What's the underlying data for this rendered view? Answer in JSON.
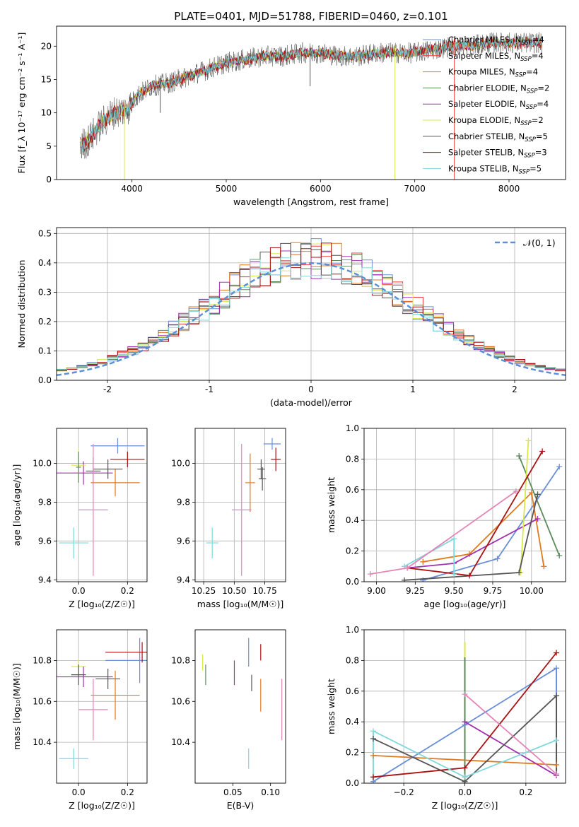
{
  "figure_title": "PLATE=0401, MJD=51788, FIBERID=0460, z=0.101",
  "colors": {
    "chabrier_miles": "#6a8fd8",
    "salpeter_miles": "#ee3b3b",
    "kroupa_miles": "#e07a1f",
    "chabrier_elodie": "#5a8a5a",
    "salpeter_elodie": "#a030b0",
    "kroupa_elodie": "#d8e84a",
    "chabrier_stelib": "#555555",
    "salpeter_stelib": "#aa1111",
    "kroupa_stelib": "#7fd8dc",
    "pink": "#e485b8",
    "normal_curve": "#5b8fd6"
  },
  "chart_data": [
    {
      "id": "spectrum",
      "type": "line",
      "xlabel": "wavelength [Angstrom, rest frame]",
      "ylabel": "Flux [f_λ 10⁻¹⁷ erg cm⁻² s⁻¹ A⁻¹]",
      "xlim": [
        3200,
        8600
      ],
      "ylim": [
        0,
        23
      ],
      "xticks": [
        4000,
        5000,
        6000,
        7000,
        8000
      ],
      "yticks": [
        0,
        5,
        10,
        15,
        20
      ],
      "grid": false,
      "legend": "right",
      "series": [
        {
          "name": "Chabrier MILES, N_SSP=4",
          "color": "#6a8fd8"
        },
        {
          "name": "Salpeter MILES, N_SSP=4",
          "color": "#ee3b3b"
        },
        {
          "name": "Kroupa MILES, N_SSP=4",
          "color": "#e07a1f"
        },
        {
          "name": "Chabrier ELODIE, N_SSP=2",
          "color": "#5a8a5a"
        },
        {
          "name": "Salpeter ELODIE, N_SSP=4",
          "color": "#a030b0"
        },
        {
          "name": "Kroupa ELODIE, N_SSP=2",
          "color": "#d8e84a"
        },
        {
          "name": "Chabrier STELIB, N_SSP=5",
          "color": "#555555"
        },
        {
          "name": "Salpeter STELIB, N_SSP=3",
          "color": "#aa1111"
        },
        {
          "name": "Kroupa STELIB, N_SSP=5",
          "color": "#7fd8dc"
        }
      ],
      "legend_labels": [
        {
          "main": "Chabrier MILES, N",
          "sub": "SSP",
          "tail": "=4"
        },
        {
          "main": "Salpeter MILES, N",
          "sub": "SSP",
          "tail": "=4"
        },
        {
          "main": "Kroupa MILES, N",
          "sub": "SSP",
          "tail": "=4"
        },
        {
          "main": "Chabrier ELODIE, N",
          "sub": "SSP",
          "tail": "=2"
        },
        {
          "main": "Salpeter ELODIE, N",
          "sub": "SSP",
          "tail": "=4"
        },
        {
          "main": "Kroupa ELODIE, N",
          "sub": "SSP",
          "tail": "=2"
        },
        {
          "main": "Chabrier STELIB, N",
          "sub": "SSP",
          "tail": "=5"
        },
        {
          "main": "Salpeter STELIB, N",
          "sub": "SSP",
          "tail": "=3"
        },
        {
          "main": "Kroupa STELIB, N",
          "sub": "SSP",
          "tail": "=5"
        }
      ],
      "continuum": [
        [
          3450,
          5
        ],
        [
          3550,
          6
        ],
        [
          3650,
          8
        ],
        [
          3800,
          10
        ],
        [
          3950,
          10.5
        ],
        [
          4050,
          12.5
        ],
        [
          4200,
          14
        ],
        [
          4400,
          14.5
        ],
        [
          4600,
          15.5
        ],
        [
          4800,
          16.5
        ],
        [
          5000,
          17.5
        ],
        [
          5200,
          18
        ],
        [
          5400,
          18.5
        ],
        [
          5600,
          18.5
        ],
        [
          5800,
          19
        ],
        [
          6000,
          19
        ],
        [
          6200,
          18.5
        ],
        [
          6400,
          18.5
        ],
        [
          6600,
          19
        ],
        [
          6800,
          19
        ],
        [
          7000,
          19
        ],
        [
          7200,
          19.5
        ],
        [
          7400,
          20
        ],
        [
          7600,
          20
        ],
        [
          7800,
          20.5
        ],
        [
          8000,
          20.5
        ],
        [
          8200,
          20.5
        ],
        [
          8350,
          20.5
        ]
      ],
      "features": [
        {
          "x": 3920,
          "min": 0,
          "color": "#d8e84a"
        },
        {
          "x": 6790,
          "min": 0,
          "color": "#d8e84a"
        },
        {
          "x": 7420,
          "min": 0,
          "color": "#ee3b3b"
        },
        {
          "x": 5890,
          "min": 14,
          "color": "#555555"
        },
        {
          "x": 4300,
          "min": 10,
          "color": "#555555"
        }
      ]
    },
    {
      "id": "residuals",
      "type": "step",
      "xlabel": "(data-model)/error",
      "ylabel": "Normed distribution",
      "xlim": [
        -2.5,
        2.5
      ],
      "ylim": [
        0,
        0.52
      ],
      "xticks": [
        -2,
        -1,
        0,
        1,
        2
      ],
      "ytick_labels": [
        "0.0",
        "0.1",
        "0.2",
        "0.3",
        "0.4",
        "0.5"
      ],
      "yticks": [
        0,
        0.1,
        0.2,
        0.3,
        0.4,
        0.5
      ],
      "grid": true,
      "legend": "top-right",
      "legend_label": "𝒩(0, 1)",
      "bin_width": 0.1
    },
    {
      "id": "age_vs_Z",
      "type": "scatter",
      "xlabel": "Z [log₁₀(Z/Z☉)]",
      "ylabel": "age  [log₁₀(age/yr)]",
      "xlim": [
        -0.09,
        0.28
      ],
      "ylim": [
        9.39,
        10.18
      ],
      "xticks": [
        0,
        0.2
      ],
      "xtick_labels": [
        "0.0",
        "0.2"
      ],
      "yticks": [
        9.4,
        9.6,
        9.8,
        10.0
      ],
      "ytick_labels": [
        "9.4",
        "9.6",
        "9.8",
        "10.0"
      ],
      "grid": true,
      "points": [
        {
          "x": 0.16,
          "y": 10.09,
          "xe": 0.11,
          "ye": 0.04,
          "color": "#6a8fd8"
        },
        {
          "x": 0.2,
          "y": 10.02,
          "xe": 0.07,
          "ye": 0.04,
          "color": "#aa1111"
        },
        {
          "x": 0.15,
          "y": 9.9,
          "xe": 0.1,
          "ye": 0.07,
          "color": "#e07a1f"
        },
        {
          "x": 0.02,
          "y": 9.95,
          "xe": 0.12,
          "ye": 0.06,
          "color": "#a030b0"
        },
        {
          "x": 0.0,
          "y": 9.99,
          "xe": 0.03,
          "ye": 0.09,
          "color": "#d8e84a"
        },
        {
          "x": 0.06,
          "y": 9.96,
          "xe": 0.03,
          "ye": 0.07,
          "color": "#555555"
        },
        {
          "x": 0.12,
          "y": 9.97,
          "xe": 0.06,
          "ye": 0.05,
          "color": "#555555"
        },
        {
          "x": 0.0,
          "y": 9.98,
          "xe": 0.01,
          "ye": 0.08,
          "color": "#5a8a5a"
        },
        {
          "x": 0.06,
          "y": 9.76,
          "xe": 0.06,
          "ye": 0.34,
          "color": "#e485b8"
        },
        {
          "x": -0.02,
          "y": 9.59,
          "xe": 0.06,
          "ye": 0.08,
          "color": "#7fd8dc"
        }
      ]
    },
    {
      "id": "age_vs_mass",
      "type": "scatter",
      "xlabel": "mass [log₁₀(M/M☉)]",
      "ylabel": "",
      "xlim": [
        10.18,
        10.92
      ],
      "ylim": [
        9.39,
        10.18
      ],
      "xticks": [
        10.25,
        10.5,
        10.75
      ],
      "xtick_labels": [
        "10.25",
        "10.50",
        "10.75"
      ],
      "yticks": [
        9.4,
        9.6,
        9.8,
        10.0
      ],
      "ytick_labels": [
        "9.4",
        "9.6",
        "9.8",
        "10.0"
      ],
      "grid": true,
      "points": [
        {
          "x": 10.81,
          "y": 10.1,
          "xe": 0.07,
          "ye": 0.03,
          "color": "#6a8fd8"
        },
        {
          "x": 10.84,
          "y": 10.02,
          "xe": 0.04,
          "ye": 0.06,
          "color": "#aa1111"
        },
        {
          "x": 10.63,
          "y": 9.9,
          "xe": 0.04,
          "ye": 0.15,
          "color": "#e07a1f"
        },
        {
          "x": 10.72,
          "y": 9.97,
          "xe": 0.03,
          "ye": 0.05,
          "color": "#555555"
        },
        {
          "x": 10.73,
          "y": 9.92,
          "xe": 0.03,
          "ye": 0.06,
          "color": "#555555"
        },
        {
          "x": 10.56,
          "y": 9.76,
          "xe": 0.08,
          "ye": 0.34,
          "color": "#e485b8"
        },
        {
          "x": 10.32,
          "y": 9.59,
          "xe": 0.05,
          "ye": 0.08,
          "color": "#7fd8dc"
        }
      ]
    },
    {
      "id": "mass_weight_vs_age",
      "type": "line",
      "xlabel": "age  [log₁₀(age/yr)]",
      "ylabel": "mass weight",
      "xlim": [
        8.92,
        10.22
      ],
      "ylim": [
        0,
        1
      ],
      "xticks": [
        9.0,
        9.25,
        9.5,
        9.75,
        10.0
      ],
      "xtick_labels": [
        "9.00",
        "9.25",
        "9.50",
        "9.75",
        "10.00"
      ],
      "yticks": [
        0,
        0.2,
        0.4,
        0.6,
        0.8,
        1.0
      ],
      "ytick_labels": [
        "0.0",
        "0.2",
        "0.4",
        "0.6",
        "0.8",
        "1.0"
      ],
      "grid": true,
      "series": [
        {
          "color": "#6a8fd8",
          "points": [
            [
              9.3,
              0.01
            ],
            [
              9.78,
              0.15
            ],
            [
              10.18,
              0.75
            ]
          ]
        },
        {
          "color": "#e07a1f",
          "points": [
            [
              9.3,
              0.13
            ],
            [
              9.6,
              0.18
            ],
            [
              10.0,
              0.58
            ],
            [
              10.08,
              0.1
            ]
          ]
        },
        {
          "color": "#5a8a5a",
          "points": [
            [
              9.92,
              0.82
            ],
            [
              10.18,
              0.17
            ]
          ]
        },
        {
          "color": "#a030b0",
          "points": [
            [
              9.2,
              0.09
            ],
            [
              9.5,
              0.12
            ],
            [
              10.04,
              0.41
            ]
          ]
        },
        {
          "color": "#d8e84a",
          "points": [
            [
              9.93,
              0.06
            ],
            [
              9.98,
              0.92
            ]
          ]
        },
        {
          "color": "#555555",
          "points": [
            [
              9.18,
              0.01
            ],
            [
              9.92,
              0.06
            ],
            [
              10.04,
              0.57
            ]
          ]
        },
        {
          "color": "#aa1111",
          "points": [
            [
              9.2,
              0.09
            ],
            [
              9.6,
              0.04
            ],
            [
              10.07,
              0.85
            ]
          ]
        },
        {
          "color": "#7fd8dc",
          "points": [
            [
              9.18,
              0.1
            ],
            [
              9.5,
              0.28
            ],
            [
              9.5,
              0.05
            ]
          ]
        },
        {
          "color": "#e485b8",
          "points": [
            [
              8.96,
              0.05
            ],
            [
              9.2,
              0.09
            ],
            [
              9.9,
              0.59
            ]
          ]
        }
      ]
    },
    {
      "id": "mass_vs_Z",
      "type": "scatter",
      "xlabel": "Z [log₁₀(Z/Z☉)]",
      "ylabel": "mass [log₁₀(M/M☉)]",
      "xlim": [
        -0.09,
        0.28
      ],
      "ylim": [
        10.2,
        10.95
      ],
      "xticks": [
        0,
        0.2
      ],
      "xtick_labels": [
        "0.0",
        "0.2"
      ],
      "yticks": [
        10.4,
        10.6,
        10.8
      ],
      "ytick_labels": [
        "10.4",
        "10.6",
        "10.8"
      ],
      "grid": true,
      "points": [
        {
          "x": 0.25,
          "y": 10.8,
          "xe": 0.14,
          "ye": 0.11,
          "color": "#6a8fd8"
        },
        {
          "x": 0.26,
          "y": 10.84,
          "xe": 0.15,
          "ye": 0.05,
          "color": "#aa1111"
        },
        {
          "x": 0.0,
          "y": 10.77,
          "xe": 0.03,
          "ye": 0.04,
          "color": "#d8e84a"
        },
        {
          "x": 0.02,
          "y": 10.72,
          "xe": 0.12,
          "ye": 0.05,
          "color": "#a030b0"
        },
        {
          "x": 0.12,
          "y": 10.71,
          "xe": 0.05,
          "ye": 0.05,
          "color": "#555555"
        },
        {
          "x": 0.0,
          "y": 10.73,
          "xe": 0.03,
          "ye": 0.05,
          "color": "#555555"
        },
        {
          "x": 0.15,
          "y": 10.63,
          "xe": 0.1,
          "ye": 0.12,
          "color": "#e07a1f"
        },
        {
          "x": 0.06,
          "y": 10.56,
          "xe": 0.06,
          "ye": 0.15,
          "color": "#e485b8"
        },
        {
          "x": -0.02,
          "y": 10.32,
          "xe": 0.06,
          "ye": 0.05,
          "color": "#7fd8dc"
        }
      ]
    },
    {
      "id": "mass_vs_ebv",
      "type": "scatter",
      "xlabel": "E(B-V)",
      "ylabel": "",
      "xlim": [
        0.0,
        0.12
      ],
      "ylim": [
        10.2,
        10.95
      ],
      "xticks": [
        0.05,
        0.1
      ],
      "xtick_labels": [
        "0.05",
        "0.10"
      ],
      "yticks": [
        10.4,
        10.6,
        10.8
      ],
      "ytick_labels": [
        "10.4",
        "10.6",
        "10.8"
      ],
      "grid": false,
      "points": [
        {
          "x": 0.01,
          "y": 10.79,
          "xe": 0,
          "ye": 0.04,
          "color": "#d8e84a"
        },
        {
          "x": 0.014,
          "y": 10.73,
          "xe": 0,
          "ye": 0.05,
          "color": "#5a8a5a"
        },
        {
          "x": 0.052,
          "y": 10.74,
          "xe": 0,
          "ye": 0.06,
          "color": "#a030b0"
        },
        {
          "x": 0.071,
          "y": 10.84,
          "xe": 0,
          "ye": 0.07,
          "color": "#6a8fd8"
        },
        {
          "x": 0.075,
          "y": 10.69,
          "xe": 0,
          "ye": 0.04,
          "color": "#555555"
        },
        {
          "x": 0.087,
          "y": 10.84,
          "xe": 0,
          "ye": 0.04,
          "color": "#aa1111"
        },
        {
          "x": 0.087,
          "y": 10.63,
          "xe": 0,
          "ye": 0.08,
          "color": "#e07a1f"
        },
        {
          "x": 0.115,
          "y": 10.56,
          "xe": 0,
          "ye": 0.15,
          "color": "#e485b8"
        },
        {
          "x": 0.071,
          "y": 10.32,
          "xe": 0,
          "ye": 0.05,
          "color": "#7fd8dc"
        }
      ]
    },
    {
      "id": "mass_weight_vs_Z",
      "type": "line",
      "xlabel": "Z [log₁₀(Z/Z☉)]",
      "ylabel": "mass weight",
      "xlim": [
        -0.33,
        0.33
      ],
      "ylim": [
        0,
        1
      ],
      "xticks": [
        -0.2,
        0,
        0.2
      ],
      "xtick_labels": [
        "−0.2",
        "0.0",
        "0.2"
      ],
      "yticks": [
        0,
        0.2,
        0.4,
        0.6,
        0.8,
        1.0
      ],
      "ytick_labels": [
        "0.0",
        "0.2",
        "0.4",
        "0.6",
        "0.8",
        "1.0"
      ],
      "grid": true,
      "series": [
        {
          "color": "#6a8fd8",
          "points": [
            [
              -0.3,
              0.01
            ],
            [
              0.0,
              0.38
            ],
            [
              0.3,
              0.75
            ]
          ]
        },
        {
          "color": "#e07a1f",
          "points": [
            [
              -0.3,
              0.18
            ],
            [
              0.3,
              0.12
            ]
          ]
        },
        {
          "color": "#a030b0",
          "points": [
            [
              0.0,
              0.4
            ],
            [
              0.3,
              0.05
            ]
          ]
        },
        {
          "color": "#555555",
          "points": [
            [
              -0.3,
              0.29
            ],
            [
              0.0,
              0.01
            ],
            [
              0.3,
              0.57
            ]
          ]
        },
        {
          "color": "#aa1111",
          "points": [
            [
              -0.3,
              0.04
            ],
            [
              0.0,
              0.1
            ],
            [
              0.3,
              0.85
            ]
          ]
        },
        {
          "color": "#7fd8dc",
          "points": [
            [
              -0.3,
              0.34
            ],
            [
              0.0,
              0.04
            ],
            [
              0.3,
              0.28
            ]
          ]
        },
        {
          "color": "#e485b8",
          "points": [
            [
              0.0,
              0.58
            ],
            [
              0.3,
              0.06
            ]
          ]
        }
      ],
      "vlines": [
        {
          "x": -0.3,
          "color": "#7fd8dc",
          "y0": 0.0,
          "y1": 0.34
        },
        {
          "x": 0.0,
          "color": "#d8e84a",
          "y0": 0.0,
          "y1": 0.92
        },
        {
          "x": 0.0,
          "color": "#5a8a5a",
          "y0": 0.0,
          "y1": 0.82
        },
        {
          "x": 0.3,
          "color": "#555555",
          "y0": 0.06,
          "y1": 0.57
        },
        {
          "x": 0.3,
          "color": "#6a8fd8",
          "y0": 0.57,
          "y1": 0.75
        }
      ]
    }
  ]
}
